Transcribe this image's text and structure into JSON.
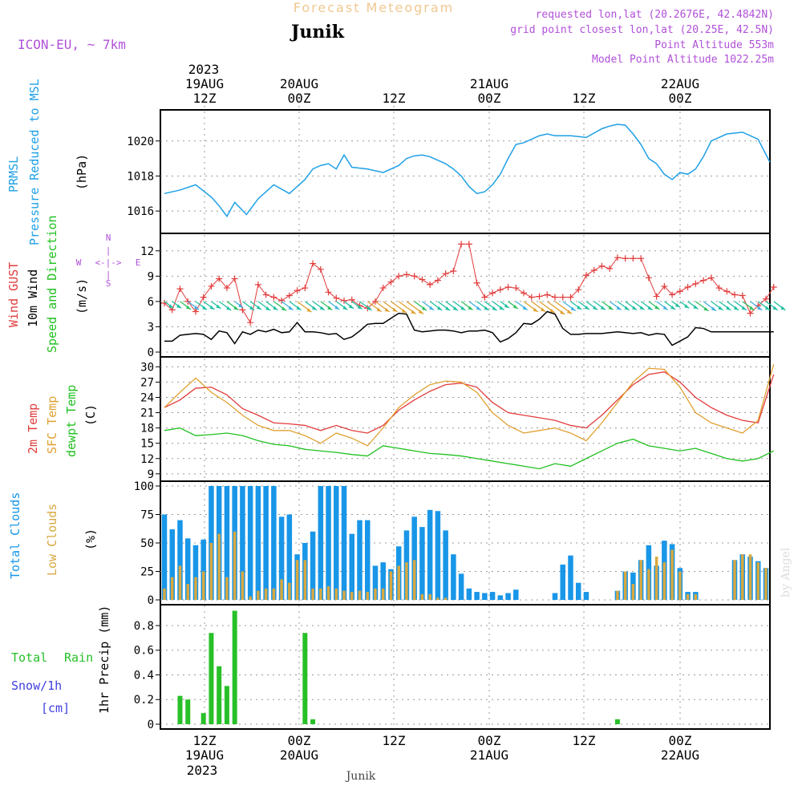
{
  "header": {
    "title": "Forecast Meteogram",
    "location": "Junik",
    "model": "ICON-EU, ~ 7km",
    "requested": "requested lon,lat (20.2676E, 42.4842N)",
    "grid_point": "grid point closest lon,lat (20.25E, 42.5N)",
    "point_altitude": "Point Altitude 553m",
    "model_altitude": "Model Point Altitude 1022.25m",
    "footer_location": "Junik",
    "credit": "by Angel"
  },
  "time_axis": {
    "top_year": "2023",
    "ticks": [
      {
        "top": "12Z",
        "date": "19AUG"
      },
      {
        "top": "00Z",
        "date": "20AUG"
      },
      {
        "top": "12Z",
        "date": ""
      },
      {
        "top": "00Z",
        "date": "21AUG"
      },
      {
        "top": "12Z",
        "date": ""
      },
      {
        "top": "00Z",
        "date": "22AUG"
      }
    ],
    "bottom_year": "2023"
  },
  "colors": {
    "pressure": "#1ea0e6",
    "gust": "#e23c3c",
    "wind": "#000000",
    "temp2m": "#e23c3c",
    "sfc": "#e0a030",
    "dewpt": "#20c020",
    "total_clouds": "#1896e8",
    "low_clouds": "#d8a840",
    "rain": "#28c028",
    "snow": "#4040e0",
    "title": "#f0c890",
    "meta": "#b050d8"
  },
  "panels": {
    "pressure": {
      "label1": "PRMSL",
      "label2": "Pressure Reduced to MSL",
      "unit": "(hPa)"
    },
    "wind": {
      "label1": "Wind GUST",
      "label2": "10m Wind",
      "label3": "Speed and Direction",
      "unit": "(m/s)",
      "compass_n": "N",
      "compass_s": "S",
      "compass_w": "W",
      "compass_e": "E"
    },
    "temp": {
      "label1": "2m Temp",
      "label2": "SFC Temp",
      "label3": "dewpt Temp",
      "unit": "(C)"
    },
    "clouds": {
      "label1": "Total Clouds",
      "label2": "Low Clouds",
      "unit": "(%)"
    },
    "precip": {
      "label1": "Total",
      "label1b": "Rain",
      "label2": "Snow/1h",
      "label3": "[cm]",
      "unit": "1hr Precip (mm)"
    }
  },
  "chart_data": [
    {
      "type": "line",
      "ylim": [
        1015,
        1021.5
      ],
      "yticks": [
        1016,
        1018,
        1020
      ],
      "x_hours_since_start": [
        0,
        4,
        8,
        12,
        14,
        16,
        18,
        21,
        24,
        28,
        32,
        34,
        36,
        38,
        40,
        42,
        44,
        46,
        48,
        52,
        56,
        60,
        62,
        64,
        66,
        68,
        70,
        72,
        74,
        76,
        78,
        80,
        82,
        84,
        86,
        88,
        90,
        92,
        94,
        96,
        98,
        100,
        104,
        108,
        112,
        114,
        116,
        118,
        120,
        122,
        124,
        126,
        128,
        130,
        132,
        134,
        136,
        138,
        140,
        144,
        148,
        152,
        155
      ],
      "series": [
        {
          "values": [
            1017.0,
            1017.2,
            1017.5,
            1016.8,
            1016.3,
            1015.7,
            1016.5,
            1015.8,
            1016.7,
            1017.5,
            1017.0,
            1017.4,
            1017.8,
            1018.4,
            1018.6,
            1018.7,
            1018.4,
            1019.2,
            1018.5,
            1018.4,
            1018.2,
            1018.6,
            1019.0,
            1019.15,
            1019.2,
            1019.1,
            1018.9,
            1018.7,
            1018.4,
            1018.0,
            1017.4,
            1017.0,
            1017.1,
            1017.5,
            1018.1,
            1019.0,
            1019.8,
            1019.9,
            1020.1,
            1020.3,
            1020.4,
            1020.3,
            1020.3,
            1020.2,
            1020.7,
            1020.85,
            1020.95,
            1020.9,
            1020.4,
            1019.8,
            1019.0,
            1018.7,
            1018.1,
            1017.8,
            1018.2,
            1018.1,
            1018.4,
            1019.1,
            1020.0,
            1020.4,
            1020.5,
            1020.1,
            1018.8
          ]
        }
      ]
    },
    {
      "type": "line",
      "ylim": [
        0,
        13.5
      ],
      "yticks": [
        0,
        3,
        6,
        9,
        12
      ],
      "x_hours_since_start": [
        0,
        2,
        4,
        6,
        8,
        10,
        12,
        14,
        16,
        18,
        20,
        22,
        24,
        26,
        28,
        30,
        32,
        34,
        36,
        38,
        40,
        42,
        44,
        46,
        48,
        50,
        52,
        54,
        56,
        58,
        60,
        62,
        64,
        66,
        68,
        70,
        72,
        74,
        76,
        78,
        80,
        82,
        84,
        86,
        88,
        90,
        92,
        94,
        96,
        98,
        100,
        102,
        104,
        106,
        108,
        110,
        112,
        114,
        116,
        118,
        120,
        122,
        124,
        126,
        128,
        130,
        132,
        134,
        136,
        138,
        140,
        142,
        144,
        146,
        148,
        150,
        152,
        154,
        156
      ],
      "series": [
        {
          "name": "Wind GUST",
          "values": [
            5.8,
            5.0,
            7.5,
            6.0,
            4.8,
            6.5,
            7.8,
            8.7,
            7.6,
            8.7,
            5.0,
            3.5,
            8.0,
            6.8,
            6.5,
            6.1,
            6.7,
            7.3,
            7.6,
            10.5,
            9.8,
            7.1,
            6.4,
            6.1,
            6.2,
            5.5,
            5.2,
            6.0,
            7.6,
            8.3,
            9.0,
            9.2,
            9.0,
            8.6,
            8.0,
            8.5,
            9.3,
            9.6,
            12.8,
            12.8,
            8.2,
            6.5,
            7.0,
            7.4,
            7.7,
            7.6,
            7.0,
            6.5,
            6.6,
            6.8,
            6.5,
            6.5,
            6.5,
            7.4,
            9.1,
            9.7,
            10.2,
            9.9,
            11.2,
            11.1,
            11.1,
            11.1,
            8.8,
            6.6,
            7.8,
            6.8,
            7.2,
            7.7,
            8.1,
            8.5,
            8.8,
            7.6,
            7.2,
            6.8,
            6.7,
            4.6,
            5.5,
            6.3,
            7.7
          ]
        },
        {
          "name": "10m Wind",
          "values": [
            1.3,
            1.3,
            2.0,
            2.1,
            2.2,
            2.1,
            1.5,
            2.5,
            2.3,
            1.0,
            2.4,
            2.1,
            2.6,
            2.4,
            2.7,
            2.3,
            2.4,
            3.5,
            2.4,
            2.4,
            2.3,
            2.1,
            2.2,
            1.5,
            1.8,
            2.5,
            3.3,
            3.4,
            3.4,
            4.0,
            4.6,
            4.5,
            2.6,
            2.4,
            2.5,
            2.6,
            2.6,
            2.5,
            2.3,
            2.5,
            2.5,
            2.6,
            2.3,
            1.2,
            1.6,
            2.3,
            3.4,
            3.3,
            3.9,
            4.8,
            4.5,
            2.8,
            2.1,
            2.1,
            2.2,
            2.2,
            2.2,
            2.3,
            2.4,
            2.3,
            2.2,
            2.3,
            2.0,
            2.2,
            2.1,
            0.8,
            1.3,
            1.8,
            2.9,
            2.8,
            2.4,
            2.4,
            2.4,
            2.4,
            2.4,
            2.4,
            2.4,
            2.4,
            2.4
          ]
        }
      ]
    },
    {
      "type": "line",
      "ylim": [
        8.5,
        31
      ],
      "yticks": [
        9,
        12,
        15,
        18,
        21,
        24,
        27,
        30
      ],
      "x_hours_since_start": [
        0,
        4,
        8,
        12,
        16,
        20,
        24,
        28,
        32,
        36,
        40,
        44,
        48,
        52,
        56,
        60,
        64,
        68,
        72,
        76,
        80,
        84,
        88,
        92,
        96,
        100,
        104,
        108,
        112,
        116,
        120,
        124,
        128,
        132,
        136,
        140,
        144,
        148,
        152,
        156
      ],
      "series": [
        {
          "name": "2m Temp",
          "values": [
            22.0,
            23.5,
            25.8,
            26.0,
            24.5,
            21.8,
            20.5,
            19.0,
            18.8,
            18.5,
            17.5,
            18.5,
            17.5,
            17.0,
            18.5,
            21.5,
            23.5,
            25.2,
            26.5,
            26.8,
            26.0,
            23.0,
            21.0,
            20.5,
            20.0,
            19.5,
            18.5,
            18.0,
            20.5,
            23.5,
            26.5,
            28.5,
            29.0,
            27.0,
            24.0,
            22.0,
            20.5,
            19.5,
            19.0,
            28.5
          ]
        },
        {
          "name": "SFC Temp",
          "values": [
            22.0,
            25.0,
            27.8,
            25.0,
            23.0,
            20.5,
            18.5,
            17.5,
            17.5,
            16.5,
            15.0,
            17.0,
            16.0,
            14.5,
            18.0,
            22.0,
            24.5,
            26.5,
            27.2,
            27.0,
            25.0,
            21.0,
            18.5,
            17.0,
            17.5,
            18.0,
            17.0,
            15.5,
            19.0,
            23.0,
            27.0,
            29.7,
            29.5,
            26.0,
            21.0,
            19.0,
            18.0,
            17.0,
            19.5,
            30.5
          ]
        },
        {
          "name": "dewpt Temp",
          "values": [
            17.5,
            18.0,
            16.5,
            16.7,
            17.0,
            16.5,
            15.5,
            14.8,
            14.5,
            13.8,
            13.5,
            13.2,
            12.8,
            12.5,
            14.5,
            14.0,
            13.5,
            13.0,
            12.8,
            12.5,
            12.0,
            11.5,
            11.0,
            10.5,
            10.0,
            11.0,
            10.5,
            12.0,
            13.5,
            15.0,
            15.8,
            14.5,
            14.0,
            13.5,
            14.0,
            13.0,
            12.0,
            11.5,
            12.0,
            13.5
          ]
        }
      ]
    },
    {
      "type": "bar",
      "ylim": [
        0,
        100
      ],
      "yticks": [
        0,
        25,
        50,
        75,
        100
      ],
      "x_hours_since_start": [
        0,
        2,
        4,
        6,
        8,
        10,
        12,
        14,
        16,
        18,
        20,
        22,
        24,
        26,
        28,
        30,
        32,
        34,
        36,
        38,
        40,
        42,
        44,
        46,
        48,
        50,
        52,
        54,
        56,
        58,
        60,
        62,
        64,
        66,
        68,
        70,
        72,
        74,
        76,
        78,
        80,
        82,
        84,
        86,
        88,
        90,
        92,
        94,
        96,
        98,
        100,
        102,
        104,
        106,
        108,
        110,
        112,
        114,
        116,
        118,
        120,
        122,
        124,
        126,
        128,
        130,
        132,
        134,
        136,
        138,
        140,
        142,
        144,
        146,
        148,
        150,
        152,
        154
      ],
      "series": [
        {
          "name": "Total Clouds",
          "values": [
            75,
            62,
            70,
            54,
            48,
            53,
            100,
            100,
            100,
            100,
            100,
            100,
            100,
            100,
            100,
            73,
            75,
            40,
            50,
            60,
            100,
            100,
            100,
            100,
            58,
            70,
            70,
            30,
            33,
            27,
            47,
            61,
            73,
            64,
            79,
            78,
            61,
            40,
            23,
            10,
            7,
            6,
            7,
            4,
            6,
            9,
            0,
            0,
            0,
            0,
            6,
            31,
            39,
            15,
            7,
            0,
            0,
            0,
            8,
            25,
            24,
            35,
            48,
            30,
            52,
            49,
            28,
            7,
            7,
            0,
            0,
            0,
            0,
            35,
            40,
            38,
            34,
            28
          ]
        },
        {
          "name": "Low Clouds",
          "values": [
            10,
            20,
            30,
            14,
            20,
            25,
            50,
            58,
            20,
            60,
            25,
            3,
            8,
            10,
            10,
            18,
            15,
            35,
            35,
            10,
            10,
            12,
            10,
            8,
            7,
            8,
            7,
            10,
            10,
            25,
            30,
            33,
            35,
            5,
            5,
            2,
            2,
            0,
            0,
            0,
            0,
            0,
            0,
            0,
            0,
            0,
            0,
            0,
            0,
            0,
            0,
            0,
            0,
            0,
            0,
            0,
            0,
            0,
            8,
            25,
            14,
            35,
            27,
            38,
            33,
            44,
            25,
            5,
            5,
            0,
            0,
            0,
            0,
            35,
            40,
            40,
            33,
            28
          ]
        }
      ]
    },
    {
      "type": "bar",
      "ylim": [
        0,
        0.93
      ],
      "yticks": [
        0,
        0.2,
        0.4,
        0.6,
        0.8
      ],
      "x_hours_since_start": [
        4,
        6,
        10,
        12,
        14,
        16,
        18,
        36,
        38,
        116
      ],
      "series": [
        {
          "name": "Total Rain",
          "values": [
            0.23,
            0.2,
            0.09,
            0.74,
            0.47,
            0.31,
            0.92,
            0.74,
            0.04,
            0.04
          ]
        }
      ]
    }
  ]
}
